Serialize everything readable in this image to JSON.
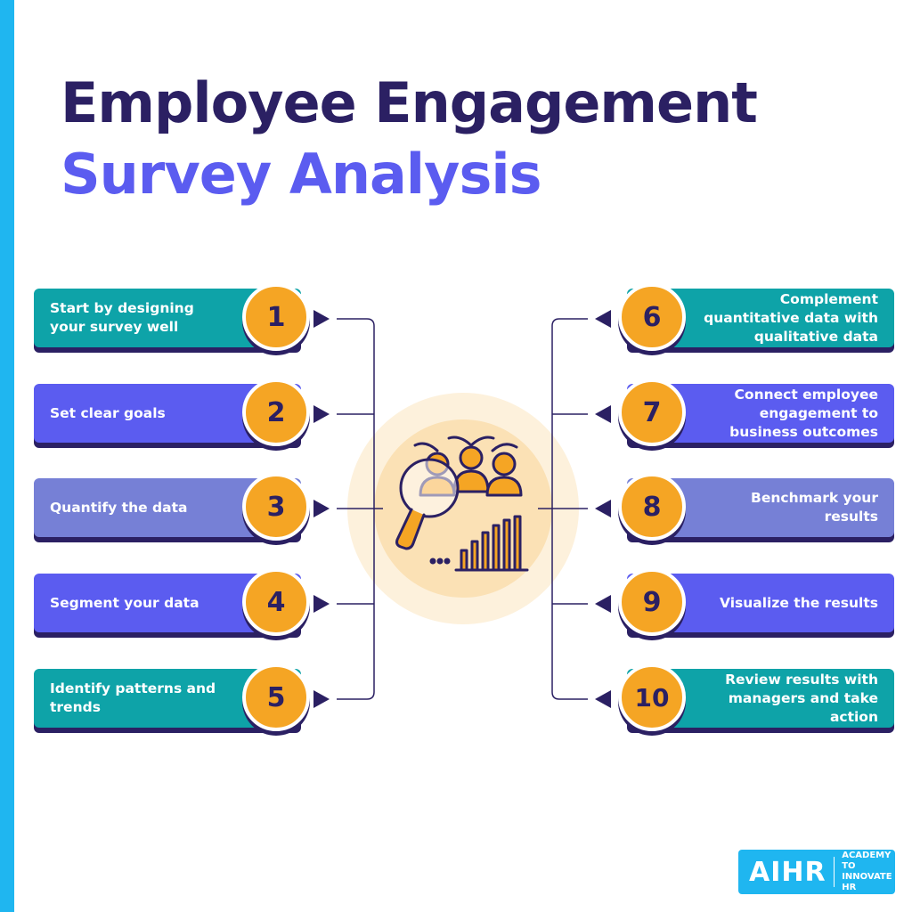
{
  "title": {
    "line1": "Employee Engagement",
    "line2": "Survey Analysis"
  },
  "colors": {
    "teal": "#0ea3a8",
    "violet": "#5b5cf0",
    "lavender": "#7680d6",
    "navy": "#2b2063",
    "orange": "#f5a524",
    "sky": "#1fb6f0"
  },
  "center_icon": "magnifier-people-chart-icon",
  "steps": [
    {
      "number": "1",
      "text": "Start by designing your survey well"
    },
    {
      "number": "2",
      "text": "Set clear goals"
    },
    {
      "number": "3",
      "text": "Quantify the data"
    },
    {
      "number": "4",
      "text": "Segment your data"
    },
    {
      "number": "5",
      "text": "Identify patterns and trends"
    },
    {
      "number": "6",
      "text": "Complement quantitative data with qualitative data"
    },
    {
      "number": "7",
      "text": "Connect employee engagement to business outcomes"
    },
    {
      "number": "8",
      "text": "Benchmark your results"
    },
    {
      "number": "9",
      "text": "Visualize the results"
    },
    {
      "number": "10",
      "text": "Review results with managers and take action"
    }
  ],
  "logo": {
    "brand": "AIHR",
    "tagline": "ACADEMY TO INNOVATE HR"
  }
}
